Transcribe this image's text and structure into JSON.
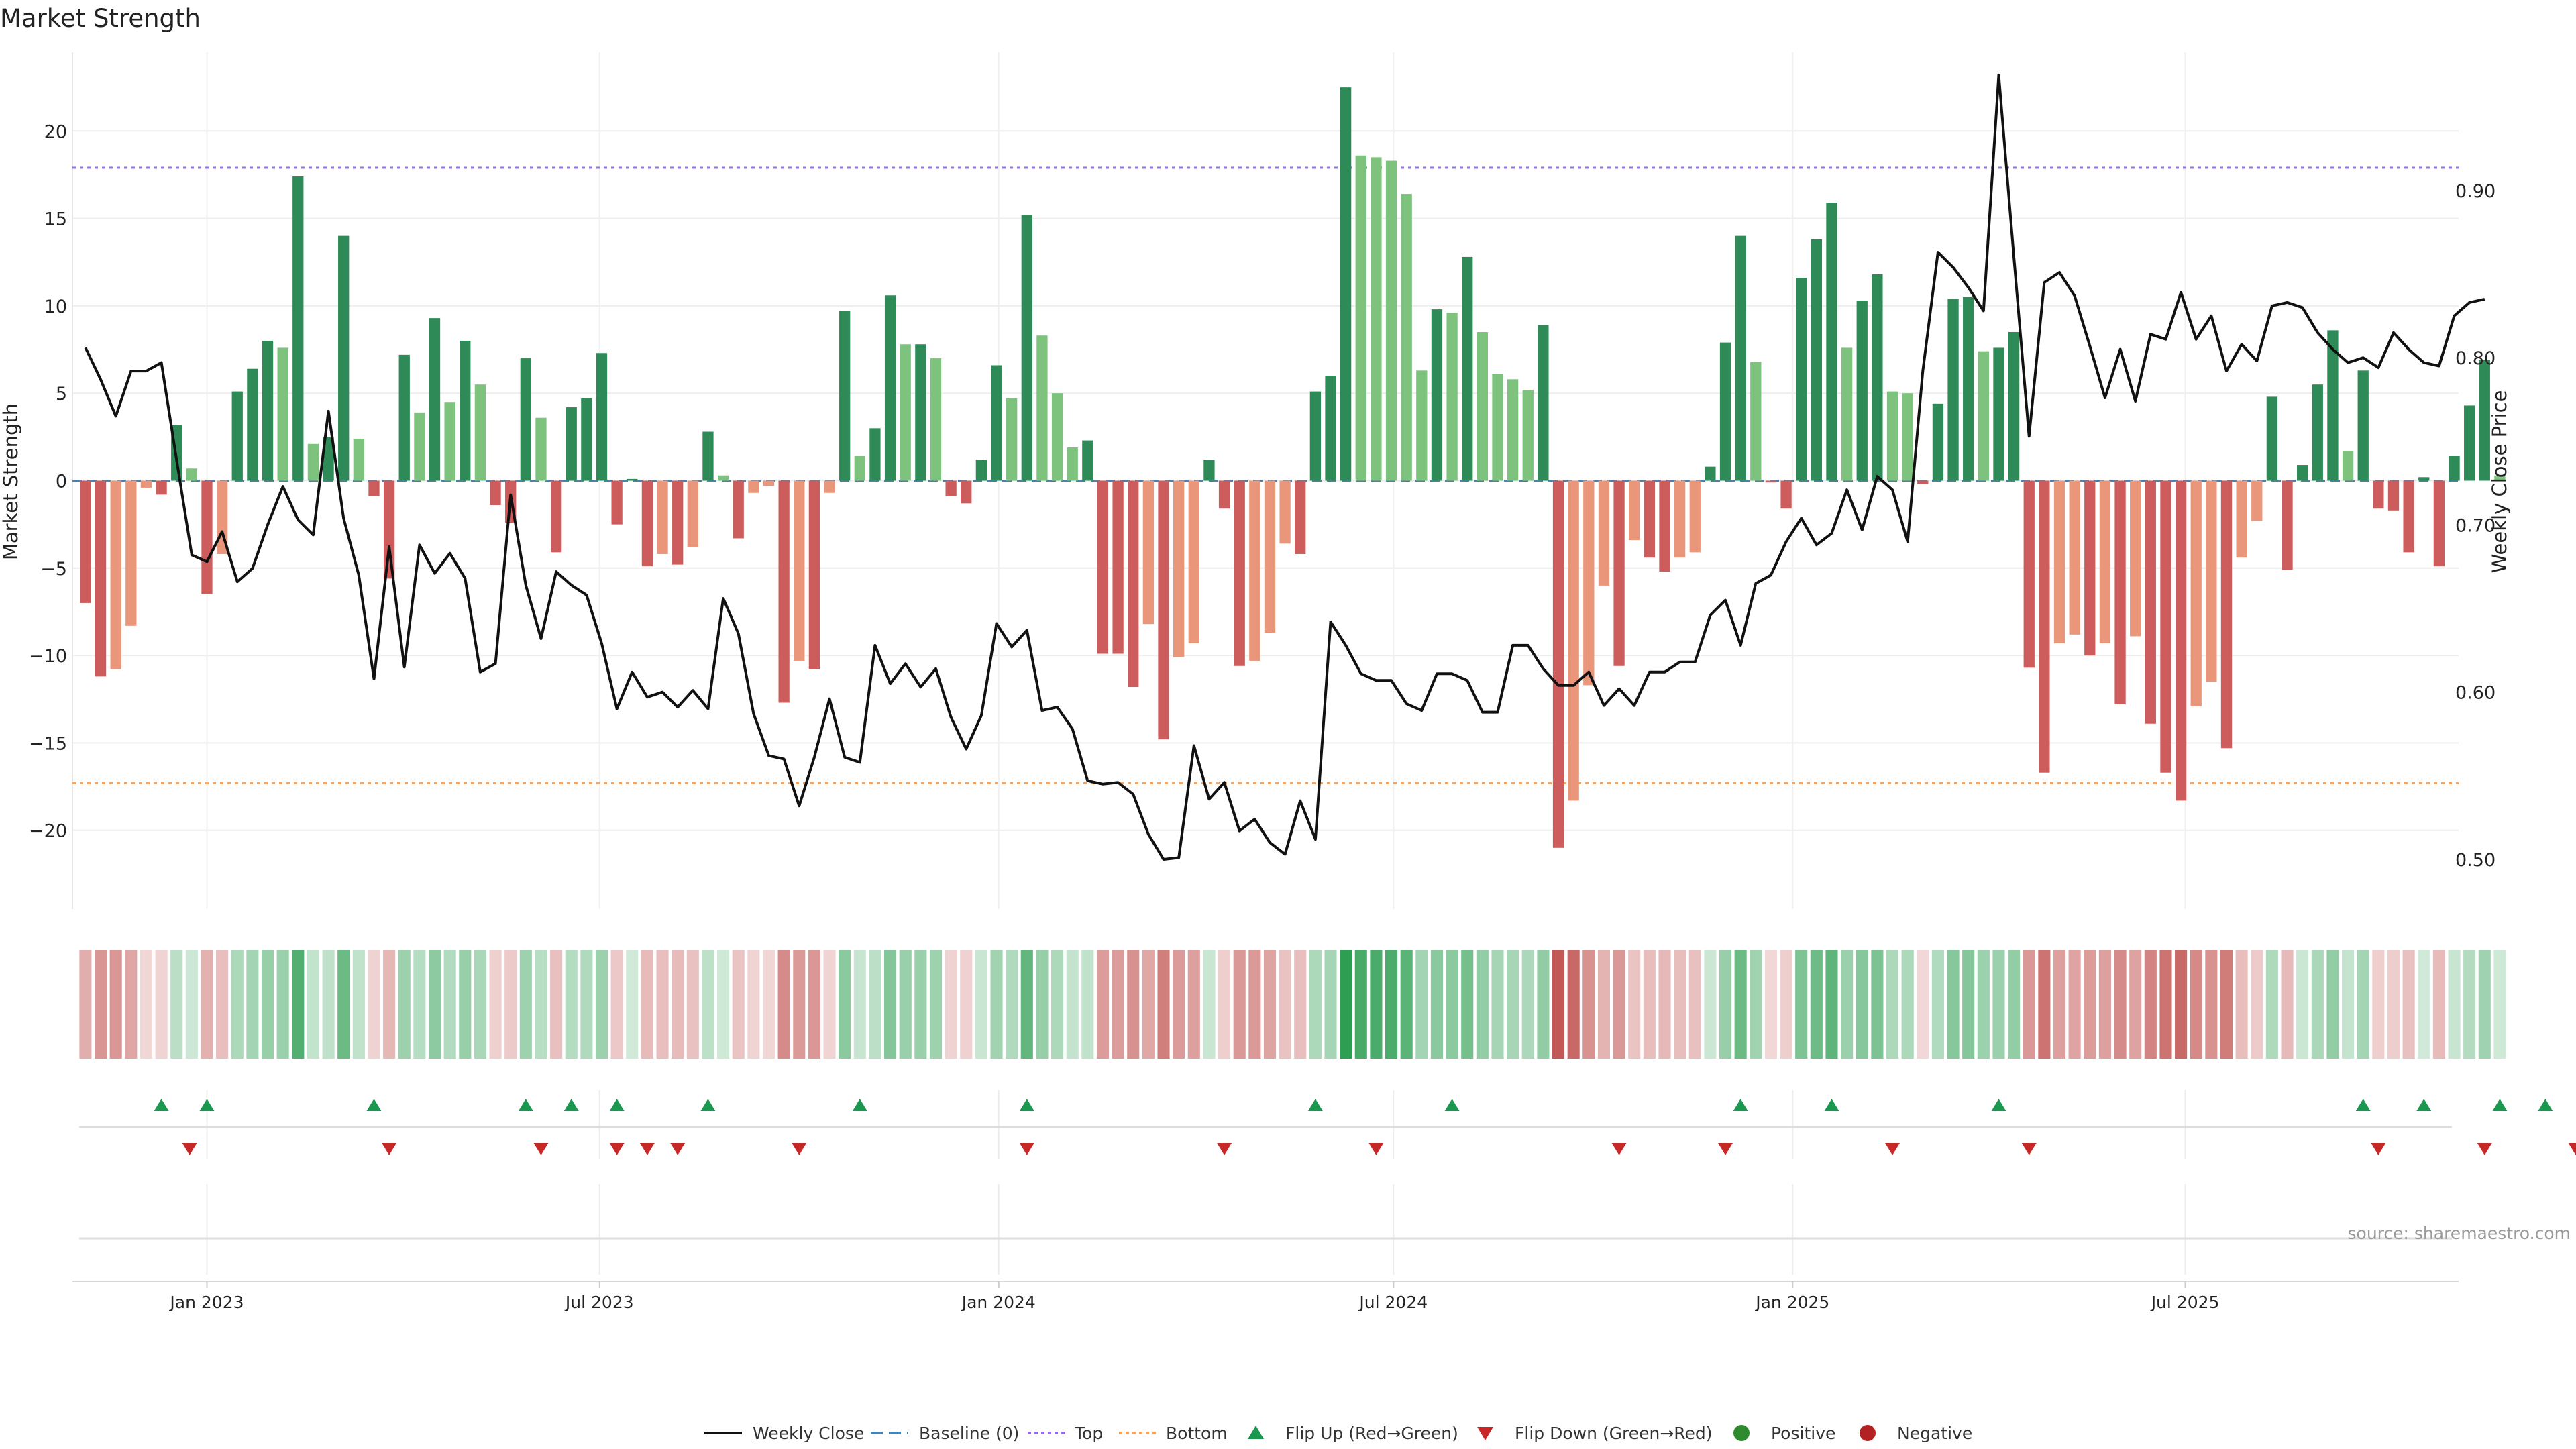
{
  "chart_data": {
    "type": "bar",
    "title": "Market Strength",
    "ylabel": "Market Strength",
    "y2label": "Weekly Close Price",
    "source": "source: sharemaestro.com",
    "ylim": [
      -24.5,
      24.5
    ],
    "y2lim": [
      0.4703,
      0.9826
    ],
    "yticks": [
      20,
      15,
      10,
      5,
      0,
      -5,
      -10,
      -15,
      -20
    ],
    "ytick_labels": [
      "20",
      "15",
      "10",
      "5",
      "0",
      "−5",
      "−10",
      "−15",
      "−20"
    ],
    "y2ticks": [
      0.9,
      0.8,
      0.7,
      0.6,
      0.5
    ],
    "y2tick_labels": [
      "0.90",
      "0.80",
      "0.70",
      "0.60",
      "0.50"
    ],
    "x_start": "2022-11-06",
    "x_step_days": 7,
    "x_range": [
      "2022-10-31",
      "2025-11-04"
    ],
    "xticks": [
      "2023-01-01",
      "2023-07-01",
      "2024-01-01",
      "2024-07-01",
      "2025-01-01",
      "2025-07-01"
    ],
    "xtick_labels": [
      "Jan 2023",
      "Jul 2023",
      "Jan 2024",
      "Jul 2024",
      "Jan 2025",
      "Jul 2025"
    ],
    "reference_lines": {
      "top": 17.9,
      "bottom": -17.3,
      "baseline": 0
    },
    "strength": [
      -7.0,
      -11.2,
      -10.8,
      -8.3,
      -0.4,
      -0.8,
      3.2,
      0.7,
      -6.5,
      -4.2,
      5.1,
      6.4,
      8.0,
      7.6,
      17.4,
      2.1,
      2.5,
      14.0,
      2.4,
      -0.9,
      -5.6,
      7.2,
      3.9,
      9.3,
      4.5,
      8.0,
      5.5,
      -1.4,
      -2.4,
      7.0,
      3.6,
      -4.1,
      4.2,
      4.7,
      7.3,
      -2.5,
      0.1,
      -4.9,
      -4.2,
      -4.8,
      -3.8,
      2.8,
      0.3,
      -3.3,
      -0.7,
      -0.3,
      -12.7,
      -10.3,
      -10.8,
      -0.7,
      9.7,
      1.4,
      3.0,
      10.6,
      7.8,
      7.8,
      7.0,
      -0.9,
      -1.3,
      1.2,
      6.6,
      4.7,
      15.2,
      8.3,
      5.0,
      1.9,
      2.3,
      -9.9,
      -9.9,
      -11.8,
      -8.2,
      -14.8,
      -10.1,
      -9.3,
      1.2,
      -1.6,
      -10.6,
      -10.3,
      -8.7,
      -3.6,
      -4.2,
      5.1,
      6.0,
      22.5,
      18.6,
      18.5,
      18.3,
      16.4,
      6.3,
      9.8,
      9.6,
      12.8,
      8.5,
      6.1,
      5.8,
      5.2,
      8.9,
      -21.0,
      -18.3,
      -11.7,
      -6.0,
      -10.6,
      -3.4,
      -4.4,
      -5.2,
      -4.4,
      -4.1,
      0.8,
      7.9,
      14.0,
      6.8,
      -0.1,
      -1.6,
      11.6,
      13.8,
      15.9,
      7.6,
      10.3,
      11.8,
      5.1,
      5.0,
      -0.2,
      4.4,
      10.4,
      10.5,
      7.4,
      7.6,
      8.5,
      -10.7,
      -16.7,
      -9.3,
      -8.8,
      -10.0,
      -9.3,
      -12.8,
      -8.9,
      -13.9,
      -16.7,
      -18.3,
      -12.9,
      -11.5,
      -15.3,
      -4.4,
      -2.3,
      4.8,
      -5.1,
      0.9,
      5.5,
      8.6,
      1.7,
      6.3,
      -1.6,
      -1.7,
      -4.1,
      0.2,
      -4.9,
      1.4,
      4.3,
      6.9,
      0.3
    ],
    "price": [
      0.806,
      0.787,
      0.765,
      0.792,
      0.792,
      0.797,
      0.739,
      0.682,
      0.678,
      0.696,
      0.666,
      0.674,
      0.7,
      0.723,
      0.703,
      0.694,
      0.768,
      0.704,
      0.67,
      0.608,
      0.687,
      0.615,
      0.688,
      0.671,
      0.683,
      0.668,
      0.612,
      0.617,
      0.718,
      0.664,
      0.632,
      0.672,
      0.664,
      0.658,
      0.629,
      0.59,
      0.612,
      0.597,
      0.6,
      0.591,
      0.601,
      0.59,
      0.656,
      0.635,
      0.587,
      0.562,
      0.56,
      0.532,
      0.561,
      0.596,
      0.561,
      0.558,
      0.628,
      0.605,
      0.617,
      0.603,
      0.614,
      0.585,
      0.566,
      0.586,
      0.641,
      0.627,
      0.637,
      0.589,
      0.591,
      0.578,
      0.547,
      0.545,
      0.546,
      0.539,
      0.515,
      0.5,
      0.501,
      0.568,
      0.536,
      0.546,
      0.517,
      0.524,
      0.51,
      0.503,
      0.535,
      0.512,
      0.642,
      0.628,
      0.611,
      0.607,
      0.607,
      0.593,
      0.589,
      0.611,
      0.611,
      0.607,
      0.588,
      0.588,
      0.628,
      0.628,
      0.614,
      0.604,
      0.604,
      0.612,
      0.592,
      0.602,
      0.592,
      0.612,
      0.612,
      0.618,
      0.618,
      0.646,
      0.655,
      0.628,
      0.665,
      0.67,
      0.69,
      0.704,
      0.688,
      0.695,
      0.721,
      0.697,
      0.729,
      0.721,
      0.69,
      0.792,
      0.863,
      0.854,
      0.842,
      0.828,
      0.969,
      0.86,
      0.753,
      0.845,
      0.851,
      0.837,
      0.807,
      0.776,
      0.805,
      0.774,
      0.814,
      0.811,
      0.839,
      0.811,
      0.825,
      0.792,
      0.808,
      0.798,
      0.831,
      0.833,
      0.83,
      0.815,
      0.805,
      0.797,
      0.8,
      0.794,
      0.815,
      0.805,
      0.797,
      0.795,
      0.825,
      0.833,
      0.835
    ],
    "flip_up_dates": [
      "2022-12-11",
      "2023-01-01",
      "2023-03-19",
      "2023-05-28",
      "2023-06-18",
      "2023-07-09",
      "2023-08-20",
      "2023-10-29",
      "2024-01-14",
      "2024-05-26",
      "2024-07-28",
      "2024-12-08",
      "2025-01-19",
      "2025-04-06",
      "2025-09-21",
      "2025-10-19",
      "2025-11-23",
      "2025-12-14"
    ],
    "flip_down_dates": [
      "2022-12-24",
      "2023-03-26",
      "2023-06-04",
      "2023-07-09",
      "2023-07-23",
      "2023-08-06",
      "2023-10-01",
      "2024-01-14",
      "2024-04-14",
      "2024-06-23",
      "2024-10-13",
      "2024-12-01",
      "2025-02-16",
      "2025-04-20",
      "2025-09-28",
      "2025-11-16",
      "2025-12-28"
    ],
    "legend": {
      "weekly_close": "Weekly Close",
      "baseline": "Baseline (0)",
      "top": "Top",
      "bottom": "Bottom",
      "flip_up": "Flip Up (Red→Green)",
      "flip_down": "Flip Down (Green→Red)",
      "positive": "Positive",
      "negative": "Negative"
    },
    "colors": {
      "positive_strong": "#2e8b57",
      "positive_light": "#7dc27d",
      "negative_strong": "#cd5c5c",
      "negative_light": "#e9967a",
      "price_line": "#111111",
      "baseline": "#4682b4",
      "top_line": "#9370db",
      "bottom_line": "#f4a460",
      "flip_up": "#1a9850",
      "flip_down": "#c62828",
      "positive_dot": "#2e8b2e",
      "negative_dot": "#b22222"
    }
  }
}
